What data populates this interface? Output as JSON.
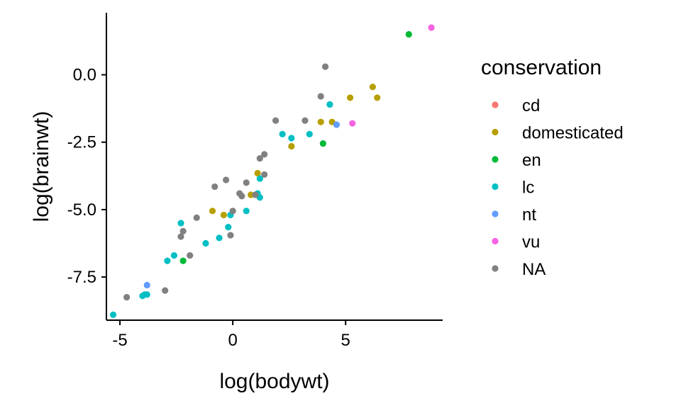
{
  "chart_data": {
    "type": "scatter",
    "xlabel": "log(bodywt)",
    "ylabel": "log(brainwt)",
    "xlim": [
      -5.6,
      9.3
    ],
    "ylim": [
      -9.1,
      2.3
    ],
    "x_ticks": [
      -5,
      0,
      5
    ],
    "x_tick_labels": [
      "-5",
      "0",
      "5"
    ],
    "y_ticks": [
      0,
      -2.5,
      -5,
      -7.5
    ],
    "y_tick_labels": [
      "0.0",
      "-2.5",
      "-5.0",
      "-7.5"
    ],
    "grid": false,
    "legend": {
      "title": "conservation",
      "placement": "right",
      "entries": [
        "cd",
        "domesticated",
        "en",
        "lc",
        "nt",
        "vu",
        "NA"
      ]
    },
    "series": [
      {
        "name": "cd",
        "color": "#F8766D",
        "points": []
      },
      {
        "name": "domesticated",
        "color": "#B79F00",
        "points": [
          [
            -0.9,
            -5.05
          ],
          [
            -0.4,
            -5.2
          ],
          [
            0.8,
            -4.45
          ],
          [
            1.1,
            -3.65
          ],
          [
            2.6,
            -2.65
          ],
          [
            3.9,
            -1.75
          ],
          [
            4.4,
            -1.75
          ],
          [
            5.2,
            -0.85
          ],
          [
            6.2,
            -0.45
          ],
          [
            6.4,
            -0.85
          ]
        ]
      },
      {
        "name": "en",
        "color": "#00BA38",
        "points": [
          [
            -2.2,
            -6.9
          ],
          [
            4.0,
            -2.55
          ],
          [
            7.8,
            1.5
          ]
        ]
      },
      {
        "name": "lc",
        "color": "#00BFC4",
        "points": [
          [
            -5.3,
            -8.9
          ],
          [
            -4.0,
            -8.2
          ],
          [
            -3.9,
            -8.15
          ],
          [
            -3.8,
            -8.15
          ],
          [
            -2.9,
            -6.9
          ],
          [
            -2.6,
            -6.7
          ],
          [
            -2.3,
            -5.5
          ],
          [
            -1.2,
            -6.25
          ],
          [
            -0.6,
            -6.05
          ],
          [
            -0.2,
            -5.65
          ],
          [
            -0.1,
            -5.2
          ],
          [
            0.6,
            -5.05
          ],
          [
            1.1,
            -4.4
          ],
          [
            1.2,
            -4.55
          ],
          [
            1.2,
            -3.85
          ],
          [
            2.2,
            -2.2
          ],
          [
            2.6,
            -2.35
          ],
          [
            3.4,
            -2.2
          ],
          [
            4.3,
            -1.1
          ]
        ]
      },
      {
        "name": "nt",
        "color": "#619CFF",
        "points": [
          [
            -3.8,
            -7.8
          ],
          [
            4.6,
            -1.85
          ]
        ]
      },
      {
        "name": "vu",
        "color": "#F564E3",
        "points": [
          [
            5.3,
            -1.8
          ],
          [
            8.8,
            1.75
          ]
        ]
      },
      {
        "name": "NA",
        "color": "#808080",
        "points": [
          [
            -4.7,
            -8.25
          ],
          [
            -3.0,
            -8.0
          ],
          [
            -1.9,
            -6.7
          ],
          [
            -2.3,
            -6.0
          ],
          [
            -2.2,
            -5.8
          ],
          [
            -1.6,
            -5.3
          ],
          [
            -0.8,
            -4.15
          ],
          [
            -0.3,
            -3.9
          ],
          [
            -0.1,
            -5.95
          ],
          [
            0.0,
            -5.05
          ],
          [
            0.3,
            -4.4
          ],
          [
            0.4,
            -4.5
          ],
          [
            0.6,
            -4.0
          ],
          [
            1.0,
            -4.45
          ],
          [
            1.2,
            -3.1
          ],
          [
            1.4,
            -2.95
          ],
          [
            1.4,
            -3.7
          ],
          [
            1.9,
            -1.7
          ],
          [
            3.2,
            -1.7
          ],
          [
            3.9,
            -0.8
          ],
          [
            4.1,
            0.3
          ]
        ]
      }
    ]
  }
}
